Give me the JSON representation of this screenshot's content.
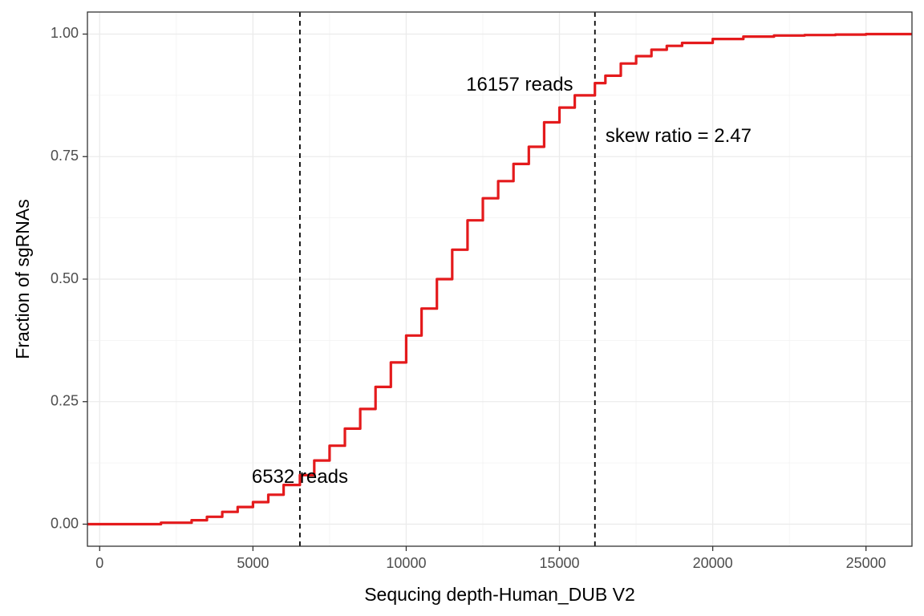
{
  "chart_data": {
    "type": "line",
    "xlabel": "Sequcing depth-Human_DUB V2",
    "ylabel": "Fraction of sgRNAs",
    "xlim": [
      -400,
      26500
    ],
    "ylim": [
      -0.045,
      1.045
    ],
    "x_ticks": [
      0,
      5000,
      10000,
      15000,
      20000,
      25000
    ],
    "y_ticks": [
      0.0,
      0.25,
      0.5,
      0.75,
      1.0
    ],
    "x_tick_labels": [
      "0",
      "5000",
      "10000",
      "15000",
      "20000",
      "25000"
    ],
    "y_tick_labels": [
      "0.00",
      "0.25",
      "0.50",
      "0.75",
      "1.00"
    ],
    "grid": true,
    "series": [
      {
        "color": "#e41a1c",
        "x": [
          -400,
          1000,
          2000,
          3000,
          3500,
          4000,
          4500,
          5000,
          5500,
          6000,
          6532,
          7000,
          7500,
          8000,
          8500,
          9000,
          9500,
          10000,
          10500,
          11000,
          11500,
          12000,
          12500,
          13000,
          13500,
          14000,
          14500,
          15000,
          15500,
          16157,
          16500,
          17000,
          17500,
          18000,
          18500,
          19000,
          20000,
          21000,
          22000,
          23000,
          24000,
          25000,
          26500
        ],
        "y": [
          0.0,
          0.0,
          0.003,
          0.008,
          0.015,
          0.025,
          0.035,
          0.045,
          0.06,
          0.08,
          0.1,
          0.13,
          0.16,
          0.195,
          0.235,
          0.28,
          0.33,
          0.385,
          0.44,
          0.5,
          0.56,
          0.62,
          0.665,
          0.7,
          0.735,
          0.77,
          0.82,
          0.85,
          0.875,
          0.9,
          0.915,
          0.94,
          0.955,
          0.968,
          0.976,
          0.982,
          0.99,
          0.995,
          0.997,
          0.998,
          0.999,
          1.0,
          1.0
        ]
      }
    ],
    "vlines": [
      6532,
      16157
    ],
    "annotations": [
      {
        "text": "6532 reads",
        "x": 6532,
        "y": 0.095,
        "anchor": "middle"
      },
      {
        "text": "16157 reads",
        "x": 13700,
        "y": 0.895,
        "anchor": "middle"
      },
      {
        "text": "skew ratio = 2.47",
        "x": 16500,
        "y": 0.79,
        "anchor": "start"
      }
    ]
  }
}
